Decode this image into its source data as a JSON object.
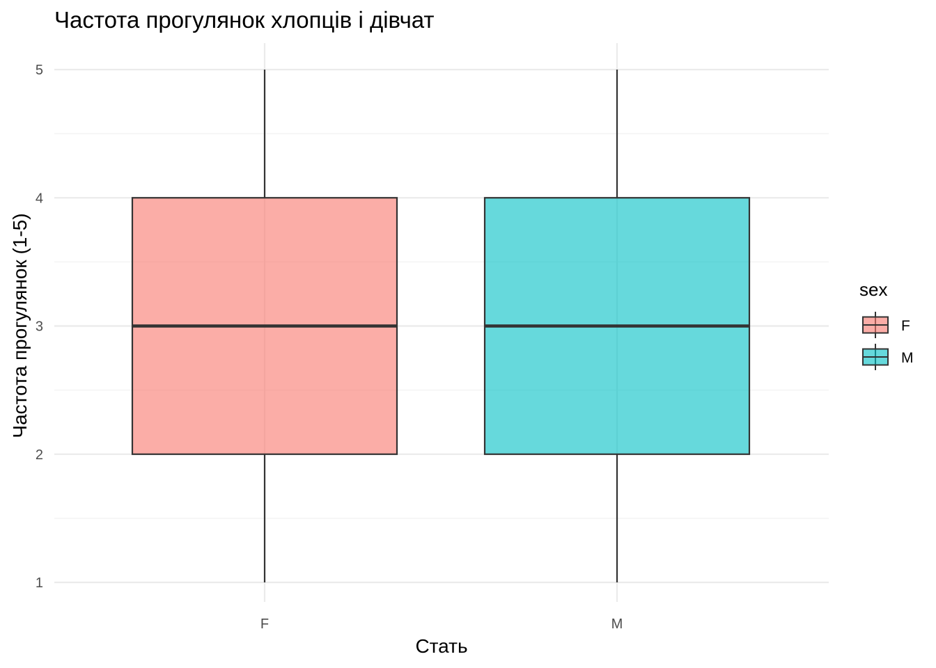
{
  "chart_data": {
    "type": "box",
    "title": "Частота прогулянок хлопців і дівчат",
    "xlabel": "Стать",
    "ylabel": "Частота прогулянок (1-5)",
    "categories": [
      "F",
      "M"
    ],
    "boxes": [
      {
        "category": "F",
        "min": 1,
        "q1": 2,
        "median": 3,
        "q3": 4,
        "max": 5,
        "color": "#F8766D"
      },
      {
        "category": "M",
        "min": 1,
        "q1": 2,
        "median": 3,
        "q3": 4,
        "max": 5,
        "color": "#00BFC4"
      }
    ],
    "y_ticks": [
      1,
      2,
      3,
      4,
      5
    ],
    "ylim": [
      1,
      5
    ],
    "grid": true,
    "legend": {
      "title": "sex",
      "position": "right",
      "entries": [
        {
          "label": "F",
          "color": "#F8766D"
        },
        {
          "label": "M",
          "color": "#00BFC4"
        }
      ]
    }
  }
}
